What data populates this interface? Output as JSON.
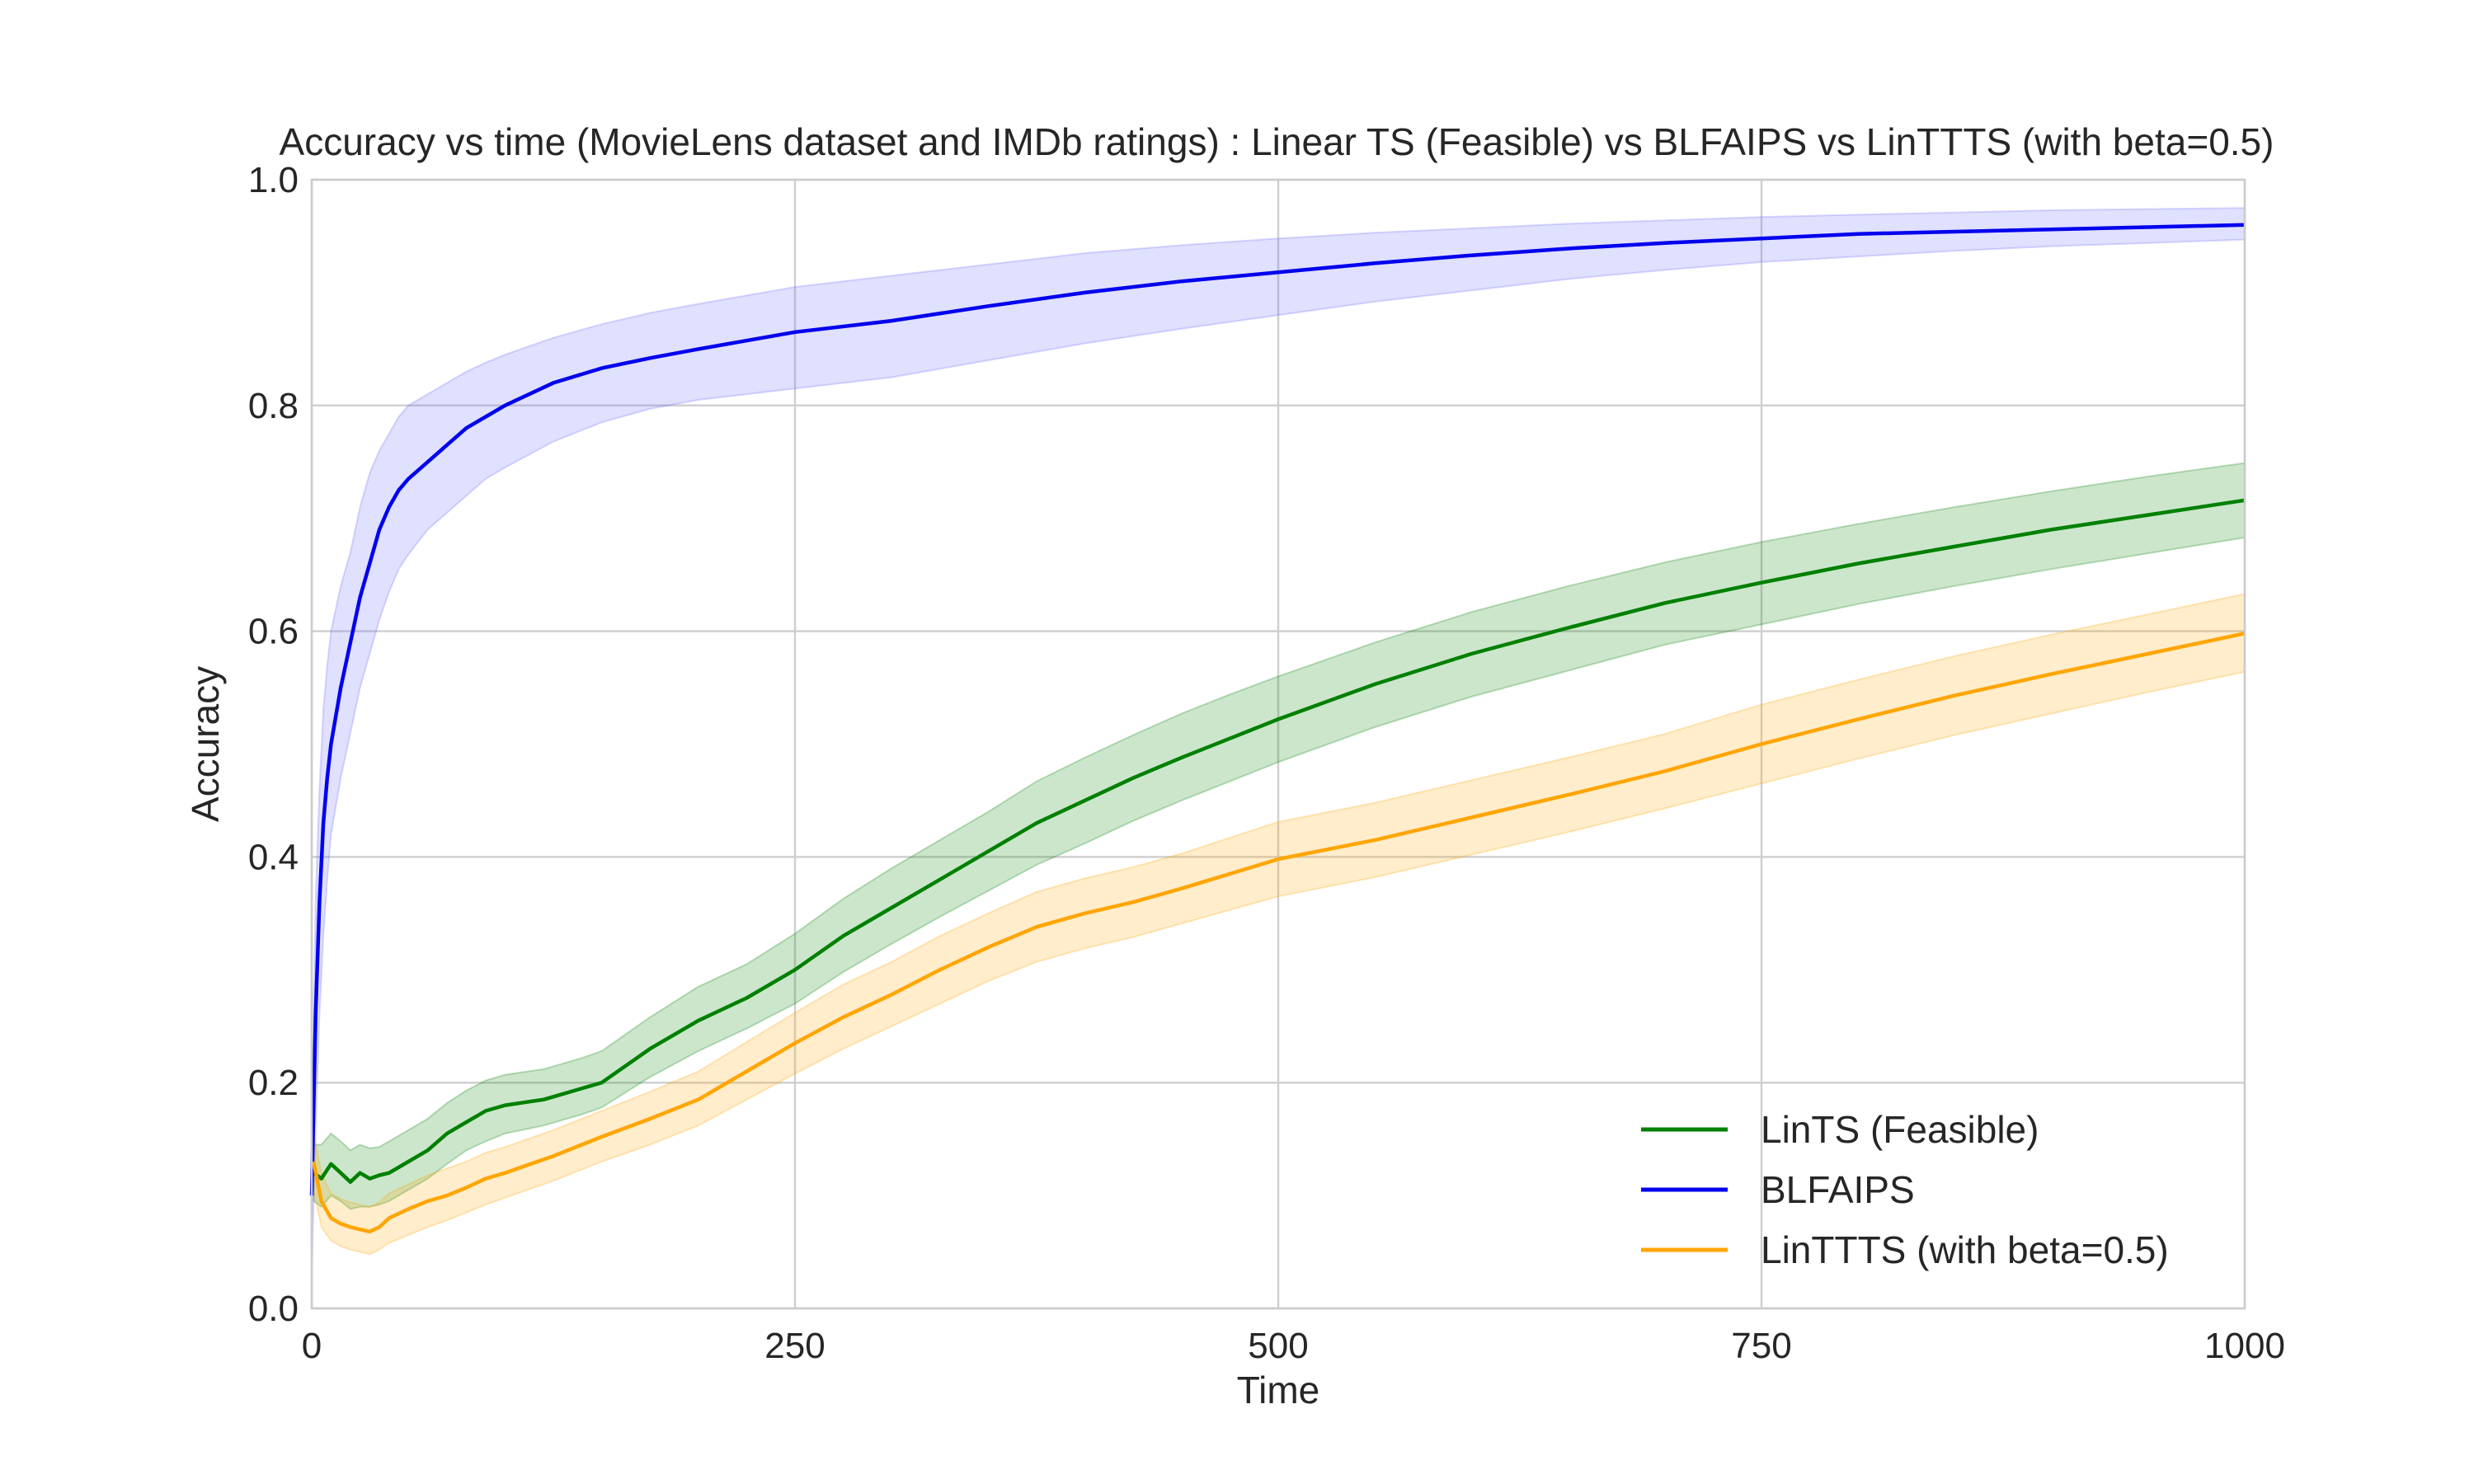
{
  "chart_data": {
    "type": "line",
    "title": "Accuracy vs time (MovieLens dataset and IMDb ratings) : Linear TS (Feasible) vs BLFAIPS vs LinTTTS (with beta=0.5)",
    "xlabel": "Time",
    "ylabel": "Accuracy",
    "xlim": [
      0,
      1000
    ],
    "ylim": [
      0.0,
      1.0
    ],
    "xticks": [
      0,
      250,
      500,
      750,
      1000
    ],
    "xtick_labels": [
      "0",
      "250",
      "500",
      "750",
      "1000"
    ],
    "yticks": [
      0.0,
      0.2,
      0.4,
      0.6,
      0.8,
      1.0
    ],
    "ytick_labels": [
      "0.0",
      "0.2",
      "0.4",
      "0.6",
      "0.8",
      "1.0"
    ],
    "grid": true,
    "legend_position": "lower-right",
    "bands": "shaded confidence band around each series",
    "series": [
      {
        "name": "LinTS (Feasible)",
        "color": "#008000",
        "band_color": "#008000",
        "x": [
          1,
          5,
          10,
          15,
          20,
          25,
          30,
          35,
          40,
          50,
          60,
          70,
          80,
          90,
          100,
          120,
          140,
          150,
          175,
          200,
          225,
          250,
          275,
          300,
          325,
          350,
          375,
          400,
          425,
          450,
          475,
          500,
          550,
          600,
          650,
          700,
          750,
          800,
          850,
          900,
          950,
          1000
        ],
        "y": [
          0.12,
          0.115,
          0.128,
          0.12,
          0.112,
          0.12,
          0.115,
          0.118,
          0.12,
          0.13,
          0.14,
          0.155,
          0.165,
          0.175,
          0.18,
          0.185,
          0.195,
          0.2,
          0.23,
          0.255,
          0.275,
          0.3,
          0.33,
          0.355,
          0.38,
          0.405,
          0.43,
          0.45,
          0.47,
          0.488,
          0.505,
          0.522,
          0.553,
          0.58,
          0.603,
          0.625,
          0.643,
          0.66,
          0.675,
          0.69,
          0.703,
          0.716
        ],
        "lower": [
          0.095,
          0.09,
          0.1,
          0.095,
          0.088,
          0.09,
          0.09,
          0.092,
          0.095,
          0.105,
          0.115,
          0.128,
          0.14,
          0.148,
          0.155,
          0.162,
          0.172,
          0.178,
          0.205,
          0.228,
          0.248,
          0.27,
          0.298,
          0.323,
          0.347,
          0.37,
          0.393,
          0.412,
          0.432,
          0.45,
          0.467,
          0.484,
          0.515,
          0.542,
          0.565,
          0.588,
          0.606,
          0.624,
          0.64,
          0.655,
          0.669,
          0.683
        ],
        "upper": [
          0.145,
          0.145,
          0.155,
          0.148,
          0.14,
          0.145,
          0.142,
          0.143,
          0.148,
          0.158,
          0.168,
          0.182,
          0.193,
          0.202,
          0.207,
          0.212,
          0.222,
          0.228,
          0.258,
          0.285,
          0.305,
          0.332,
          0.363,
          0.39,
          0.415,
          0.44,
          0.467,
          0.488,
          0.508,
          0.527,
          0.544,
          0.56,
          0.59,
          0.617,
          0.64,
          0.661,
          0.679,
          0.695,
          0.71,
          0.724,
          0.737,
          0.749
        ]
      },
      {
        "name": "BLFAIPS",
        "color": "#0000ee",
        "band_color": "#6666ff",
        "x": [
          0,
          2,
          4,
          6,
          8,
          10,
          15,
          20,
          25,
          30,
          35,
          40,
          45,
          50,
          60,
          70,
          80,
          90,
          100,
          125,
          150,
          175,
          200,
          250,
          300,
          350,
          400,
          450,
          500,
          550,
          600,
          650,
          700,
          750,
          800,
          850,
          900,
          950,
          1000
        ],
        "y": [
          0.1,
          0.26,
          0.36,
          0.43,
          0.47,
          0.5,
          0.55,
          0.59,
          0.63,
          0.66,
          0.69,
          0.71,
          0.725,
          0.735,
          0.75,
          0.765,
          0.78,
          0.79,
          0.8,
          0.82,
          0.833,
          0.842,
          0.85,
          0.865,
          0.875,
          0.888,
          0.9,
          0.91,
          0.918,
          0.926,
          0.933,
          0.939,
          0.944,
          0.948,
          0.952,
          0.954,
          0.956,
          0.958,
          0.96
        ],
        "lower": [
          0.03,
          0.16,
          0.26,
          0.33,
          0.38,
          0.42,
          0.47,
          0.51,
          0.55,
          0.58,
          0.61,
          0.635,
          0.655,
          0.668,
          0.69,
          0.705,
          0.72,
          0.735,
          0.745,
          0.768,
          0.785,
          0.797,
          0.805,
          0.815,
          0.825,
          0.84,
          0.855,
          0.868,
          0.88,
          0.892,
          0.902,
          0.912,
          0.92,
          0.927,
          0.932,
          0.937,
          0.941,
          0.944,
          0.947
        ],
        "upper": [
          0.17,
          0.36,
          0.46,
          0.53,
          0.57,
          0.6,
          0.64,
          0.67,
          0.71,
          0.74,
          0.76,
          0.775,
          0.79,
          0.8,
          0.81,
          0.82,
          0.83,
          0.838,
          0.845,
          0.86,
          0.872,
          0.882,
          0.89,
          0.905,
          0.915,
          0.925,
          0.935,
          0.942,
          0.948,
          0.953,
          0.957,
          0.961,
          0.964,
          0.967,
          0.969,
          0.971,
          0.973,
          0.974,
          0.975
        ]
      },
      {
        "name": "LinTTTS (with beta=0.5)",
        "color": "#ffa500",
        "band_color": "#ffa500",
        "x": [
          1,
          5,
          10,
          15,
          20,
          25,
          30,
          35,
          40,
          50,
          60,
          70,
          80,
          90,
          100,
          125,
          150,
          175,
          200,
          225,
          250,
          275,
          300,
          325,
          350,
          375,
          400,
          425,
          450,
          475,
          500,
          550,
          600,
          650,
          700,
          750,
          800,
          850,
          900,
          950,
          1000
        ],
        "y": [
          0.13,
          0.095,
          0.08,
          0.075,
          0.072,
          0.07,
          0.068,
          0.072,
          0.08,
          0.088,
          0.095,
          0.1,
          0.107,
          0.115,
          0.12,
          0.135,
          0.152,
          0.168,
          0.185,
          0.21,
          0.235,
          0.258,
          0.278,
          0.3,
          0.32,
          0.338,
          0.35,
          0.36,
          0.372,
          0.385,
          0.398,
          0.415,
          0.435,
          0.455,
          0.476,
          0.5,
          0.522,
          0.543,
          0.562,
          0.58,
          0.598
        ],
        "lower": [
          0.105,
          0.072,
          0.06,
          0.055,
          0.052,
          0.05,
          0.048,
          0.052,
          0.058,
          0.065,
          0.072,
          0.078,
          0.085,
          0.092,
          0.098,
          0.113,
          0.13,
          0.145,
          0.162,
          0.185,
          0.208,
          0.23,
          0.25,
          0.27,
          0.29,
          0.307,
          0.319,
          0.329,
          0.341,
          0.353,
          0.365,
          0.382,
          0.402,
          0.422,
          0.443,
          0.465,
          0.487,
          0.508,
          0.527,
          0.546,
          0.564
        ],
        "upper": [
          0.155,
          0.12,
          0.102,
          0.097,
          0.094,
          0.092,
          0.09,
          0.094,
          0.102,
          0.11,
          0.118,
          0.124,
          0.13,
          0.138,
          0.143,
          0.158,
          0.175,
          0.192,
          0.21,
          0.236,
          0.262,
          0.287,
          0.307,
          0.33,
          0.35,
          0.369,
          0.381,
          0.391,
          0.403,
          0.417,
          0.431,
          0.448,
          0.468,
          0.488,
          0.509,
          0.535,
          0.557,
          0.578,
          0.597,
          0.615,
          0.633
        ]
      }
    ]
  }
}
